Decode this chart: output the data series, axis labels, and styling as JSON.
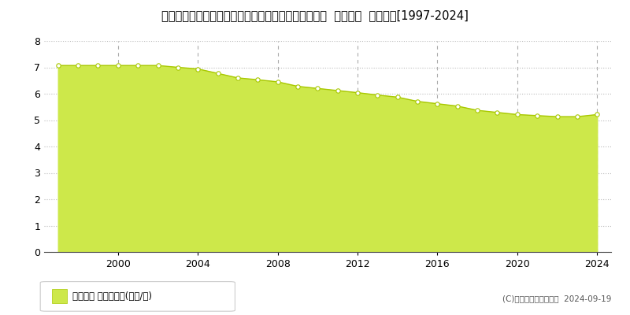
{
  "title": "宮崎県西臼杵郡高千穂町大字三田井字尾迫原３３番７  基準地価  地価推移[1997-2024]",
  "years": [
    1997,
    1998,
    1999,
    2000,
    2001,
    2002,
    2003,
    2004,
    2005,
    2006,
    2007,
    2008,
    2009,
    2010,
    2011,
    2012,
    2013,
    2014,
    2015,
    2016,
    2017,
    2018,
    2019,
    2020,
    2021,
    2022,
    2023,
    2024
  ],
  "values": [
    7.07,
    7.07,
    7.07,
    7.07,
    7.07,
    7.07,
    7.0,
    6.94,
    6.77,
    6.6,
    6.53,
    6.45,
    6.28,
    6.2,
    6.12,
    6.04,
    5.95,
    5.87,
    5.71,
    5.62,
    5.53,
    5.37,
    5.29,
    5.21,
    5.17,
    5.13,
    5.13,
    5.21
  ],
  "fill_color": "#cde84a",
  "line_color": "#a8c800",
  "marker_facecolor": "#ffffff",
  "marker_edgecolor": "#a8c800",
  "grid_h_color": "#bbbbbb",
  "grid_v_color": "#aaaaaa",
  "bg_color": "#ffffff",
  "ylim": [
    0,
    8
  ],
  "yticks": [
    0,
    1,
    2,
    3,
    4,
    5,
    6,
    7,
    8
  ],
  "xticks": [
    2000,
    2004,
    2008,
    2012,
    2016,
    2020,
    2024
  ],
  "xlim_left": 1996.3,
  "xlim_right": 2024.7,
  "legend_label": "基準地価 平均坪単価(万円/坪)",
  "legend_color": "#cde84a",
  "legend_edge_color": "#a8c800",
  "copyright_text": "(C)土地価格ドットコム  2024-09-19",
  "title_fontsize": 10.5,
  "axis_fontsize": 9,
  "copyright_fontsize": 7.5
}
